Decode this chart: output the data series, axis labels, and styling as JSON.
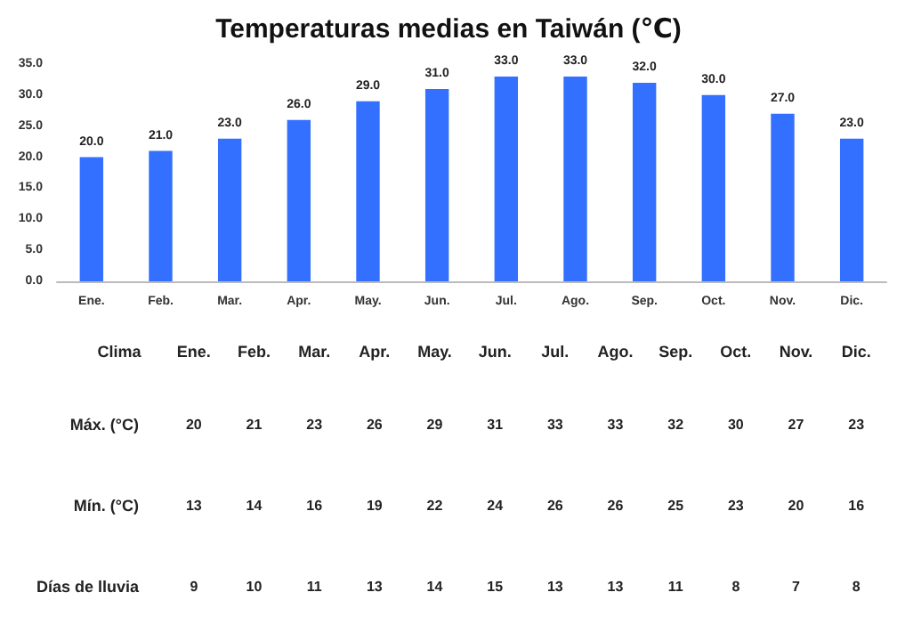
{
  "chart_data": [
    {
      "type": "bar",
      "title": "Temperaturas medias en Taiwán (℃)",
      "categories": [
        "Ene.",
        "Feb.",
        "Mar.",
        "Apr.",
        "May.",
        "Jun.",
        "Jul.",
        "Ago.",
        "Sep.",
        "Oct.",
        "Nov.",
        "Dic."
      ],
      "values": [
        20,
        21,
        23,
        26,
        29,
        31,
        33,
        33,
        32,
        30,
        27,
        23
      ],
      "value_labels": [
        "20.0",
        "21.0",
        "23.0",
        "26.0",
        "29.0",
        "31.0",
        "33.0",
        "33.0",
        "32.0",
        "30.0",
        "27.0",
        "23.0"
      ],
      "color": "#3370ff",
      "ylim": [
        0,
        35
      ],
      "yticks": [
        {
          "value": 0,
          "label": "0.0"
        },
        {
          "value": 5,
          "label": "5.0"
        },
        {
          "value": 10,
          "label": "10.0"
        },
        {
          "value": 15,
          "label": "15.0"
        },
        {
          "value": 20,
          "label": "20.0"
        },
        {
          "value": 25,
          "label": "25.0"
        },
        {
          "value": 30,
          "label": "30.0"
        },
        {
          "value": 35,
          "label": "35.0"
        }
      ],
      "grid": false
    },
    {
      "type": "heatmap",
      "ylabel": "Clima",
      "categories": [
        "Ene.",
        "Feb.",
        "Mar.",
        "Apr.",
        "May.",
        "Jun.",
        "Jul.",
        "Ago.",
        "Sep.",
        "Oct.",
        "Nov.",
        "Dic."
      ],
      "y_categories": [
        "Máx. (°C)",
        "Mín. (°C)",
        "Días de lluvia"
      ],
      "cells": [
        [
          20,
          21,
          23,
          26,
          29,
          31,
          33,
          33,
          32,
          30,
          27,
          23
        ],
        [
          13,
          14,
          16,
          19,
          22,
          24,
          26,
          26,
          25,
          23,
          20,
          16
        ],
        [
          9,
          10,
          11,
          13,
          14,
          15,
          13,
          13,
          11,
          8,
          7,
          8
        ]
      ],
      "data_labels": true
    }
  ]
}
